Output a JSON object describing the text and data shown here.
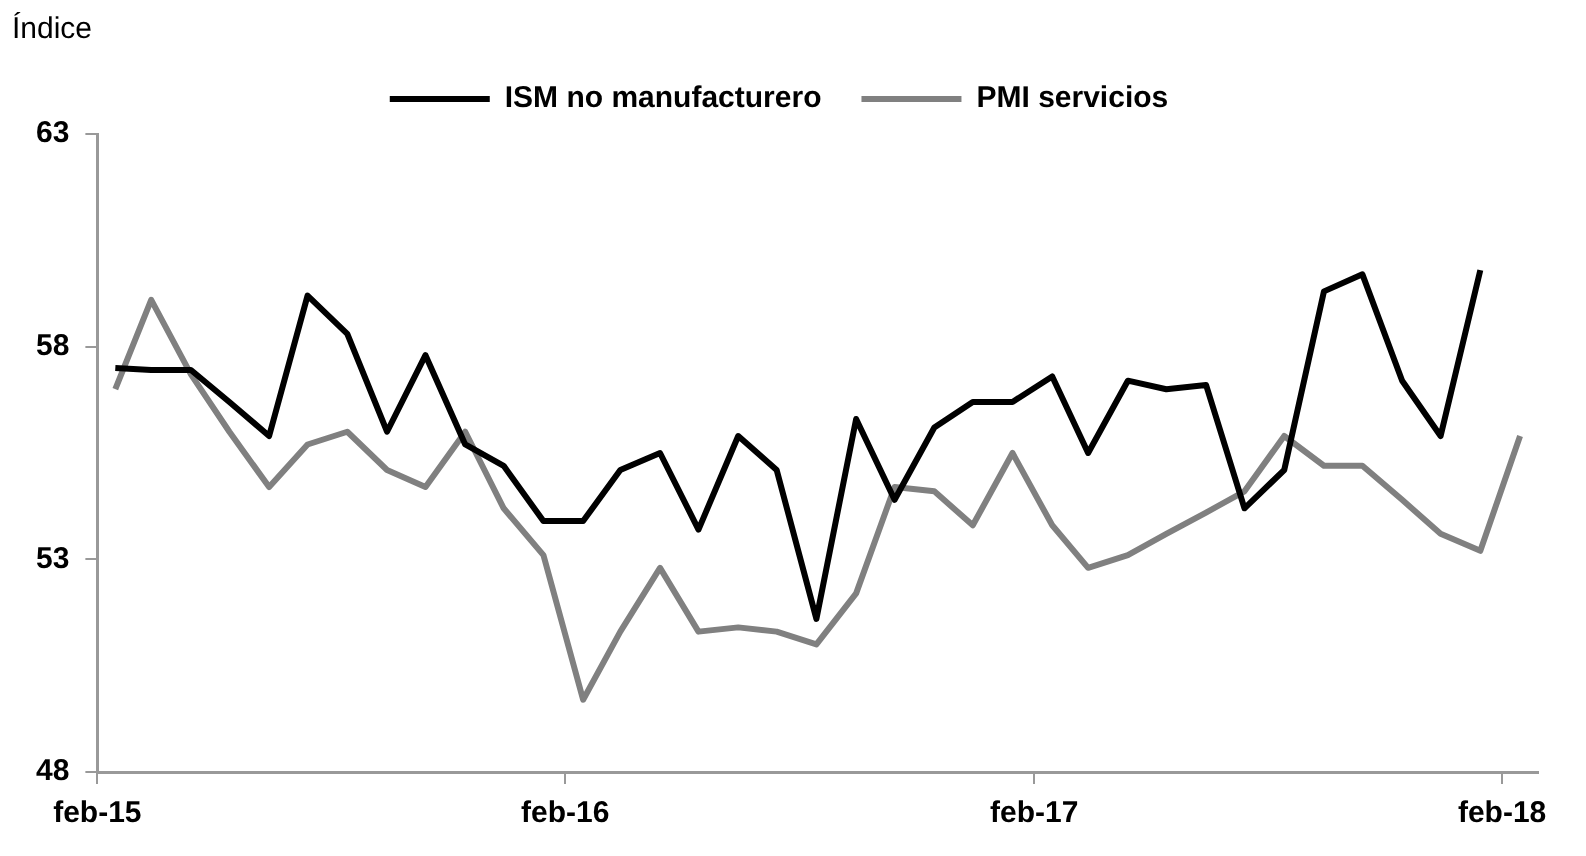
{
  "chart_data": {
    "type": "line",
    "ylabel": "Índice",
    "x": [
      "2015-02-15",
      "2015-03-15",
      "2015-04-15",
      "2015-05-15",
      "2015-06-15",
      "2015-07-15",
      "2015-08-15",
      "2015-09-15",
      "2015-10-15",
      "2015-11-15",
      "2015-12-15",
      "2016-01-15",
      "2016-02-15",
      "2016-03-15",
      "2016-04-15",
      "2016-05-15",
      "2016-06-15",
      "2016-07-15",
      "2016-08-15",
      "2016-09-15",
      "2016-10-15",
      "2016-11-15",
      "2016-12-15",
      "2017-01-15",
      "2017-02-15",
      "2017-03-15",
      "2017-04-15",
      "2017-05-15",
      "2017-06-15",
      "2017-07-15",
      "2017-08-15",
      "2017-09-15",
      "2017-10-15",
      "2017-11-15",
      "2017-12-15",
      "2018-01-15",
      "2018-02-15"
    ],
    "series": [
      {
        "name": "ISM no manufacturero",
        "color": "#000000",
        "values": [
          57.5,
          57.45,
          57.45,
          56.7,
          55.9,
          59.2,
          58.3,
          56.0,
          57.8,
          55.7,
          55.2,
          53.9,
          53.9,
          55.1,
          55.5,
          53.7,
          55.9,
          55.1,
          51.6,
          56.3,
          54.4,
          56.1,
          56.7,
          56.7,
          57.3,
          55.5,
          57.2,
          57.0,
          57.1,
          54.2,
          55.1,
          59.3,
          59.7,
          57.2,
          55.9,
          59.8,
          null
        ]
      },
      {
        "name": "PMI servicios",
        "color": "#808080",
        "values": [
          57.0,
          59.1,
          57.35,
          56.0,
          54.7,
          55.7,
          56.0,
          55.1,
          54.7,
          56.0,
          54.2,
          53.1,
          49.7,
          51.3,
          52.8,
          51.3,
          51.4,
          51.3,
          51.0,
          52.2,
          54.7,
          54.6,
          53.8,
          55.5,
          53.8,
          52.8,
          53.1,
          53.6,
          54.1,
          54.6,
          55.9,
          55.2,
          55.2,
          54.4,
          53.6,
          53.2,
          55.9
        ]
      }
    ],
    "xlim": [
      "2015-02-01",
      "2018-03-01"
    ],
    "xticks": [
      {
        "value": "2015-02-01",
        "label": "feb-15"
      },
      {
        "value": "2016-02-01",
        "label": "feb-16"
      },
      {
        "value": "2017-02-01",
        "label": "feb-17"
      },
      {
        "value": "2018-02-01",
        "label": "feb-18"
      }
    ],
    "ylim": [
      48,
      63
    ],
    "yticks": [
      48,
      53,
      58,
      63
    ],
    "grid": false,
    "legend": "top",
    "marker": "none",
    "line_style": "solid"
  }
}
